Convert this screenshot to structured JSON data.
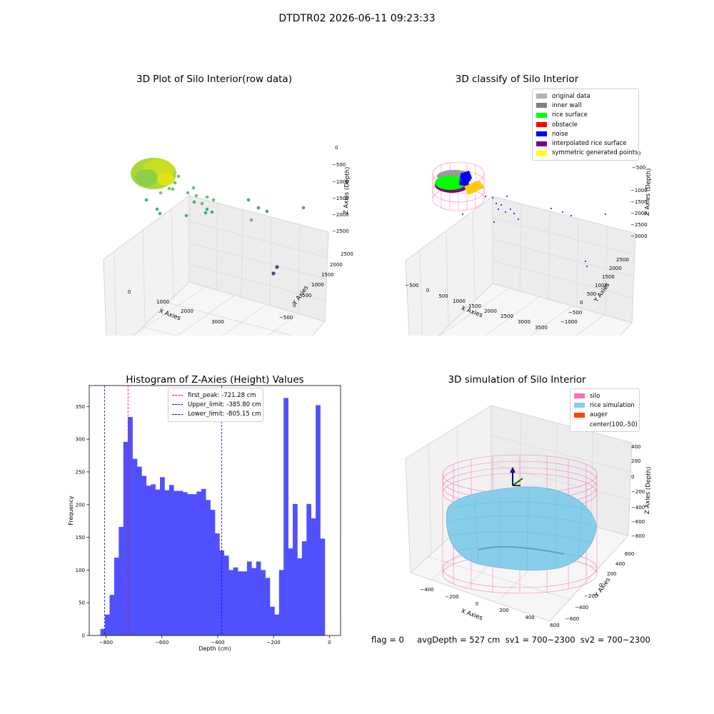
{
  "suptitle": "DTDTR02 2026-06-11 09:23:33",
  "footer": "flag = 0     avgDepth = 527 cm  sv1 = 700~2300  sv2 = 700~2300",
  "colors": {
    "hist_bar": "#5050ff",
    "peak_line": "#ff0000",
    "limit_line": "#0000ff",
    "pane": "#f2f2f2",
    "grid": "#d6d6d6"
  },
  "chart_data": [
    {
      "type": "scatter",
      "title": "3D Plot of Silo Interior(row data)",
      "xlabel": "X Axies",
      "ylabel": "Y Axies",
      "zlabel": "Z Axies (Depth)",
      "x_ticks": [
        "0",
        "1000",
        "2000",
        "3000"
      ],
      "y_ticks": [
        "2500",
        "2000",
        "1500",
        "1000",
        "500",
        "0",
        "−500"
      ],
      "z_ticks": [
        "0",
        "−500",
        "−1000",
        "−1500",
        "−2000",
        "−2500"
      ],
      "colormap": "viridis"
    },
    {
      "type": "scatter",
      "title": "3D classify of Silo Interior",
      "xlabel": "X Axies",
      "ylabel": "Y Axies",
      "zlabel": "Z Axies (Depth)",
      "x_ticks": [
        "−500",
        "0",
        "500",
        "1000",
        "1500",
        "2000",
        "2500",
        "3000",
        "3500"
      ],
      "y_ticks": [
        "2500",
        "2000",
        "1500",
        "1000",
        "500",
        "0",
        "−500",
        "−1000"
      ],
      "z_ticks": [
        "0",
        "−500",
        "−1000",
        "−1500",
        "−2000",
        "−2500",
        "−3000"
      ],
      "legend": [
        {
          "label": "original data",
          "color": "#b3b3b3"
        },
        {
          "label": "inner wall",
          "color": "#808080"
        },
        {
          "label": "rice surface",
          "color": "#00ff00"
        },
        {
          "label": "obstacle",
          "color": "#ff0000"
        },
        {
          "label": "noise",
          "color": "#0000ff"
        },
        {
          "label": "interpolated rice surface",
          "color": "#800080"
        },
        {
          "label": "symmetric generated points",
          "color": "#ffff00"
        }
      ]
    },
    {
      "type": "bar",
      "title": "Histogram of Z-Axies (Height) Values",
      "xlabel": "Depth (cm)",
      "ylabel": "Frequency",
      "xlim": [
        -860,
        40
      ],
      "ylim": [
        0,
        382
      ],
      "x_ticks": [
        -800,
        -600,
        -400,
        -200,
        0
      ],
      "x_tick_labels": [
        "−800",
        "−600",
        "−400",
        "−200",
        "0"
      ],
      "y_ticks": [
        0,
        50,
        100,
        150,
        200,
        250,
        300,
        350
      ],
      "bin_start": -820,
      "bin_width": 16.4,
      "values": [
        10,
        32,
        62,
        119,
        166,
        296,
        334,
        270,
        258,
        244,
        229,
        231,
        223,
        242,
        222,
        230,
        221,
        221,
        219,
        216,
        216,
        220,
        224,
        207,
        192,
        156,
        130,
        122,
        100,
        104,
        98,
        98,
        113,
        103,
        113,
        100,
        88,
        44,
        32,
        100,
        363,
        133,
        201,
        118,
        144,
        201,
        179,
        352,
        148
      ],
      "vlines": [
        {
          "label": "first_peak: -721.28 cm",
          "x": -721.28,
          "color": "#ff0000"
        },
        {
          "label": "Upper_limit: -385.80 cm",
          "x": -385.8,
          "color": "#0000ff"
        },
        {
          "label": "Lower_limit: -805.15 cm",
          "x": -805.15,
          "color": "#0000ff"
        }
      ]
    },
    {
      "type": "scatter",
      "title": "3D simulation of Silo Interior",
      "xlabel": "X Axies",
      "ylabel": "Y Axies",
      "zlabel": "Z Axies (Depth)",
      "x_ticks": [
        "−400",
        "−200",
        "0",
        "200",
        "400",
        "600"
      ],
      "y_ticks": [
        "600",
        "400",
        "200",
        "0",
        "−200",
        "−400",
        "−600"
      ],
      "z_ticks": [
        "400",
        "200",
        "0",
        "−200",
        "−400",
        "−600",
        "−800"
      ],
      "legend": [
        {
          "label": "silo",
          "color": "#ff69b4"
        },
        {
          "label": "rice simulation",
          "color": "#87ceeb"
        },
        {
          "label": "auger",
          "color": "#ff4500"
        },
        {
          "label": "center(100,-50)",
          "color": ""
        }
      ]
    }
  ]
}
